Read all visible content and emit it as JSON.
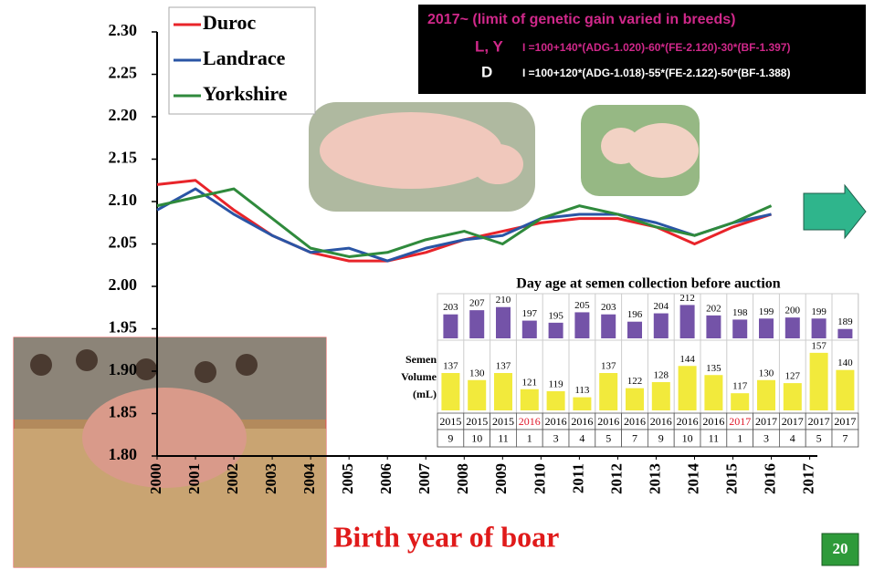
{
  "chart_data": [
    {
      "type": "line",
      "x": [
        2000,
        2001,
        2002,
        2003,
        2004,
        2005,
        2006,
        2007,
        2008,
        2009,
        2010,
        2011,
        2012,
        2013,
        2014,
        2015,
        2016,
        2017
      ],
      "xlim": [
        2000,
        2017.2
      ],
      "xticks": [
        2000,
        2001,
        2002,
        2003,
        2004,
        2005,
        2006,
        2007,
        2008,
        2009,
        2010,
        2011,
        2012,
        2013,
        2014,
        2015,
        2016,
        2017
      ],
      "x_label": "Birth year of boar",
      "ylim": [
        1.8,
        2.3
      ],
      "yticks": [
        {
          "value": 1.8,
          "label": "1.80"
        },
        1.85,
        {
          "value": 1.9,
          "label": "1.90"
        },
        1.95,
        {
          "value": 2.0,
          "label": "2.00"
        },
        2.05,
        {
          "value": 2.1,
          "label": "2.10"
        },
        2.15,
        {
          "value": 2.2,
          "label": "2.20"
        },
        2.25,
        {
          "value": 2.3,
          "label": "2.30"
        }
      ],
      "legend": "top-left",
      "series": [
        {
          "name": "Duroc",
          "color": "#e8242a",
          "values": [
            2.12,
            2.125,
            2.09,
            2.06,
            2.04,
            2.03,
            2.03,
            2.04,
            2.055,
            2.065,
            2.075,
            2.08,
            2.08,
            2.07,
            2.05,
            2.07,
            2.085,
            null
          ]
        },
        {
          "name": "Landrace",
          "color": "#2a55a5",
          "values": [
            2.09,
            2.115,
            2.085,
            2.06,
            2.04,
            2.045,
            2.03,
            2.045,
            2.055,
            2.06,
            2.08,
            2.085,
            2.085,
            2.075,
            2.06,
            2.075,
            2.085,
            null
          ]
        },
        {
          "name": "Yorkshire",
          "color": "#2f8a3c",
          "values": [
            2.095,
            2.105,
            2.115,
            2.08,
            2.045,
            2.035,
            2.04,
            2.055,
            2.065,
            2.05,
            2.08,
            2.095,
            2.085,
            2.07,
            2.06,
            2.075,
            2.095,
            null
          ]
        }
      ]
    },
    {
      "type": "bar",
      "years": [
        "2015",
        "2015",
        "2015",
        "2016",
        "2016",
        "2016",
        "2016",
        "2016",
        "2016",
        "2016",
        "2016",
        "2017",
        "2017",
        "2017",
        "2017",
        "2017"
      ],
      "months": [
        "9",
        "10",
        "11",
        "1",
        "3",
        "4",
        "5",
        "7",
        "9",
        "10",
        "11",
        "1",
        "3",
        "4",
        "5",
        "7"
      ],
      "highlighted_years": [
        3,
        11
      ],
      "highlight_color": "#e0182a",
      "series": [
        {
          "name": "Day age at semen collection before auction",
          "color": "#7453a8",
          "ylim": [
            180,
            215
          ],
          "values": [
            203,
            207,
            210,
            197,
            195,
            205,
            203,
            196,
            204,
            212,
            202,
            198,
            199,
            200,
            199,
            189
          ]
        },
        {
          "name": "Semen Volume (mL)",
          "color": "#f2ea3c",
          "ylim": [
            100,
            165
          ],
          "values": [
            137,
            130,
            137,
            121,
            119,
            113,
            137,
            122,
            128,
            144,
            135,
            117,
            130,
            127,
            157,
            140
          ]
        }
      ]
    }
  ],
  "formula_box": {
    "heading": "2017~ (limit of genetic gain varied in breeds)",
    "rows": [
      {
        "breed": "L, Y",
        "formula": "I =100+140*(ADG-1.020)-60*(FE-2.120)-30*(BF-1.397)"
      },
      {
        "breed": "D",
        "formula": "I =100+120*(ADG-1.018)-55*(FE-2.122)-50*(BF-1.388)"
      }
    ]
  },
  "page_number": "20"
}
